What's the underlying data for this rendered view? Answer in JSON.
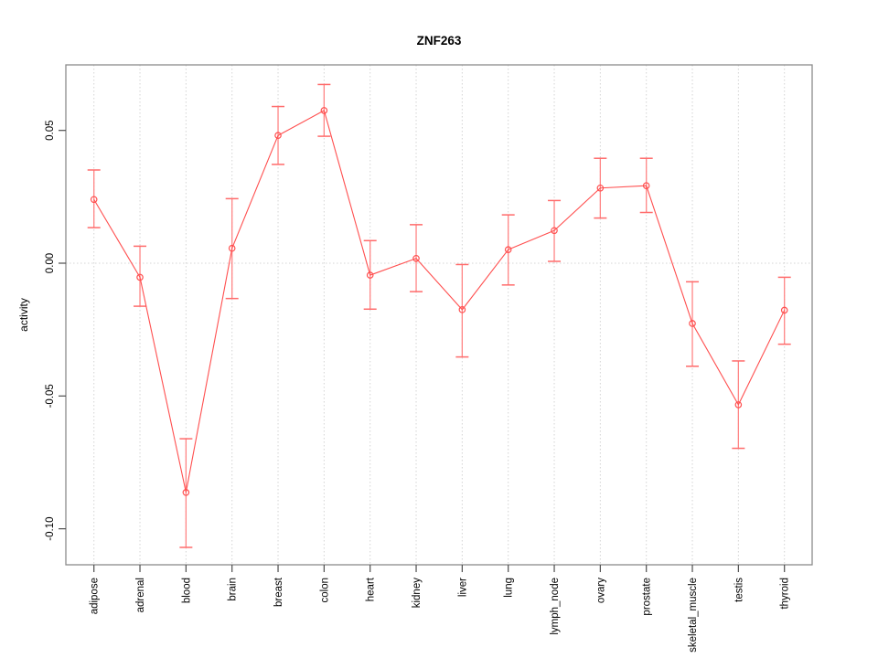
{
  "title": "ZNF263",
  "chart_data": {
    "type": "line",
    "title": "ZNF263",
    "xlabel": "",
    "ylabel": "activity",
    "categories": [
      "adipose",
      "adrenal",
      "blood",
      "brain",
      "breast",
      "colon",
      "heart",
      "kidney",
      "liver",
      "lung",
      "lymph_node",
      "ovary",
      "prostate",
      "skeletal_muscle",
      "testis",
      "thyroid"
    ],
    "series": [
      {
        "name": "ZNF263 activity",
        "values": [
          0.024,
          -0.0053,
          -0.0863,
          0.0056,
          0.0481,
          0.0575,
          -0.0045,
          0.0018,
          -0.0175,
          0.0051,
          0.0123,
          0.0283,
          0.0292,
          -0.0227,
          -0.0533,
          -0.0177
        ],
        "lower": [
          0.0134,
          -0.0162,
          -0.107,
          -0.0133,
          0.0372,
          0.0478,
          -0.0173,
          -0.0107,
          -0.0353,
          -0.0082,
          0.0007,
          0.017,
          0.0191,
          -0.0388,
          -0.0697,
          -0.0305
        ],
        "upper": [
          0.0351,
          0.0064,
          -0.0661,
          0.0243,
          0.059,
          0.0673,
          0.0085,
          0.0145,
          -0.0005,
          0.0182,
          0.0236,
          0.0395,
          0.0395,
          -0.007,
          -0.0368,
          -0.0053
        ]
      }
    ],
    "ylim": [
      -0.114,
      0.0745
    ],
    "yticks": [
      0.05,
      0.0,
      -0.05,
      -0.1
    ],
    "ytick_labels": [
      "0.05",
      "0.00",
      "-0.05",
      "-0.10"
    ],
    "grid": "vertical dotted gridline at each category; horizontal dotted line at y=0",
    "legend": "none",
    "error_bars": true,
    "point_style": "open-circle",
    "colors": {
      "series": "#ff4f4f",
      "error_bar": "#ff8585",
      "error_cap": "#ff6b6b",
      "grid": "#d4d4d4",
      "box": "#8c8c8c",
      "tick": "#4d4d4d",
      "text": "#000000",
      "background": "#ffffff"
    }
  }
}
